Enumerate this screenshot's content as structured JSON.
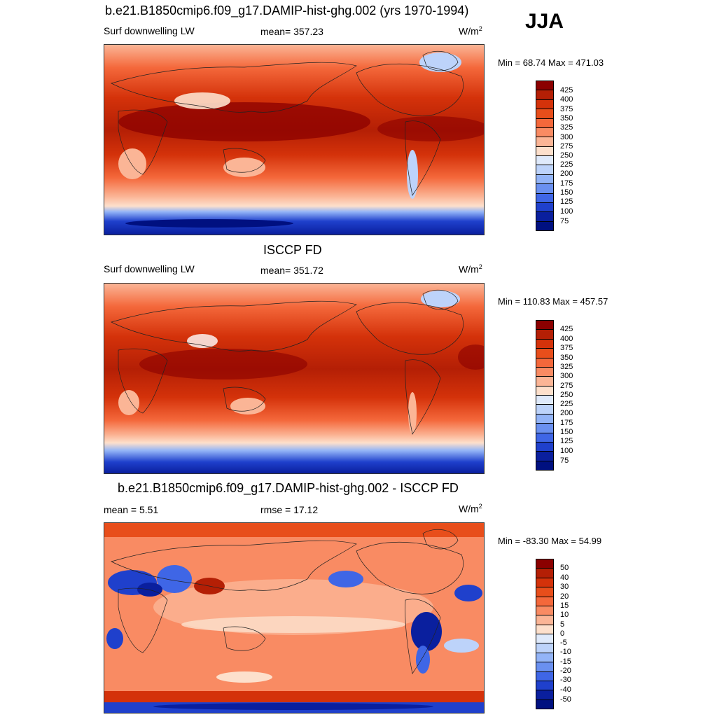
{
  "season": "JJA",
  "panels": [
    {
      "title": "b.e21.B1850cmip6.f09_g17.DAMIP-hist-ghg.002 (yrs 1970-1994)",
      "left_label": "Surf downwelling LW",
      "center_label": "mean= 357.23",
      "unit_base": "W/m",
      "unit_exp": "2",
      "minmax": "Min =  68.74 Max = 471.03"
    },
    {
      "title": "ISCCP FD",
      "left_label": "Surf downwelling LW",
      "center_label": "mean= 351.72",
      "unit_base": "W/m",
      "unit_exp": "2",
      "minmax": "Min = 110.83 Max = 457.57"
    },
    {
      "title": "b.e21.B1850cmip6.f09_g17.DAMIP-hist-ghg.002 - ISCCP FD",
      "left_label": "mean =   5.51",
      "center_label": "rmse =  17.12",
      "unit_base": "W/m",
      "unit_exp": "2",
      "minmax": "Min = -83.30 Max =  54.99"
    }
  ],
  "colorbars": {
    "abs": {
      "labels": [
        "425",
        "400",
        "375",
        "350",
        "325",
        "300",
        "275",
        "250",
        "225",
        "200",
        "175",
        "150",
        "125",
        "100",
        "75"
      ],
      "colors": [
        "#8b0000",
        "#b41f05",
        "#d4320a",
        "#e84e1b",
        "#f4683b",
        "#f98b63",
        "#fbb596",
        "#fde0cc",
        "#dfeafb",
        "#bdd3fa",
        "#93b4f7",
        "#6a90f0",
        "#3f66e6",
        "#1f40cc",
        "#0a1f9e",
        "#001080"
      ]
    },
    "diff": {
      "labels": [
        "50",
        "40",
        "30",
        "20",
        "15",
        "10",
        "5",
        "0",
        "-5",
        "-10",
        "-15",
        "-20",
        "-30",
        "-40",
        "-50"
      ],
      "colors": [
        "#8b0000",
        "#b41f05",
        "#d4320a",
        "#e84e1b",
        "#f4683b",
        "#f98b63",
        "#fbb596",
        "#fde0cc",
        "#dfeafb",
        "#bdd3fa",
        "#93b4f7",
        "#6a90f0",
        "#3f66e6",
        "#1f40cc",
        "#0a1f9e",
        "#001080"
      ]
    }
  }
}
